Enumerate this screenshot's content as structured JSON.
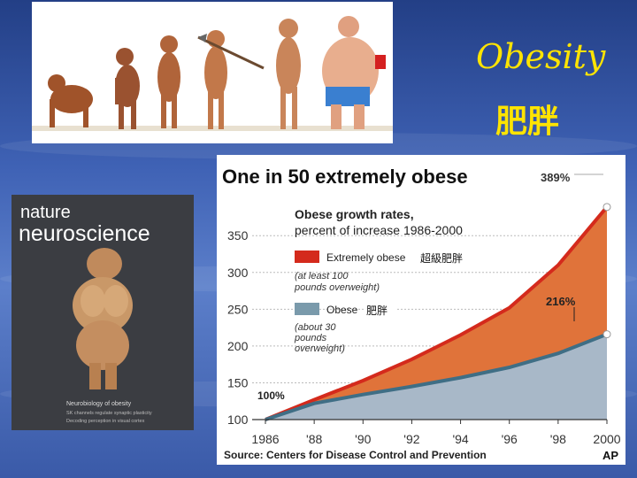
{
  "slide": {
    "title": "Obesity",
    "subtitle": "肥胖"
  },
  "cover": {
    "masthead_line1": "nature",
    "masthead_line2": "neuroscience",
    "caption": "Neurobiology of obesity",
    "lines": [
      "SK channels regulate synaptic plasticity",
      "Decoding perception in visual cortex"
    ]
  },
  "chart_data": {
    "type": "area",
    "title": "One in 50 extremely obese",
    "subtitle_line1": "Obese growth rates,",
    "subtitle_line2": "percent of increase 1986-2000",
    "x": [
      1986,
      1988,
      1990,
      1992,
      1994,
      1996,
      1998,
      2000
    ],
    "x_tick_labels": [
      "1986",
      "'88",
      "'90",
      "'92",
      "'94",
      "'96",
      "'98",
      "2000"
    ],
    "y_ticks": [
      100,
      150,
      200,
      250,
      300,
      350
    ],
    "ylim": [
      100,
      390
    ],
    "series": [
      {
        "name": "Extremely obese",
        "name_zh": "超級肥胖",
        "note": [
          "(at least 100",
          "pounds overweight)"
        ],
        "color": "#d42a1c",
        "fill": "#e0733a",
        "values": [
          100,
          127,
          153,
          182,
          215,
          252,
          310,
          389
        ]
      },
      {
        "name": "Obese",
        "name_zh": "肥胖",
        "note": [
          "(about 30",
          "pounds",
          "overweight)"
        ],
        "color": "#3f6e85",
        "fill": "#a8b8c8",
        "values": [
          100,
          122,
          134,
          145,
          157,
          171,
          190,
          216
        ]
      }
    ],
    "annotations": {
      "end_top": "389%",
      "end_bottom": "216%",
      "start": "100%"
    },
    "source": "Source: Centers for Disease Control and Prevention",
    "credit": "AP"
  }
}
